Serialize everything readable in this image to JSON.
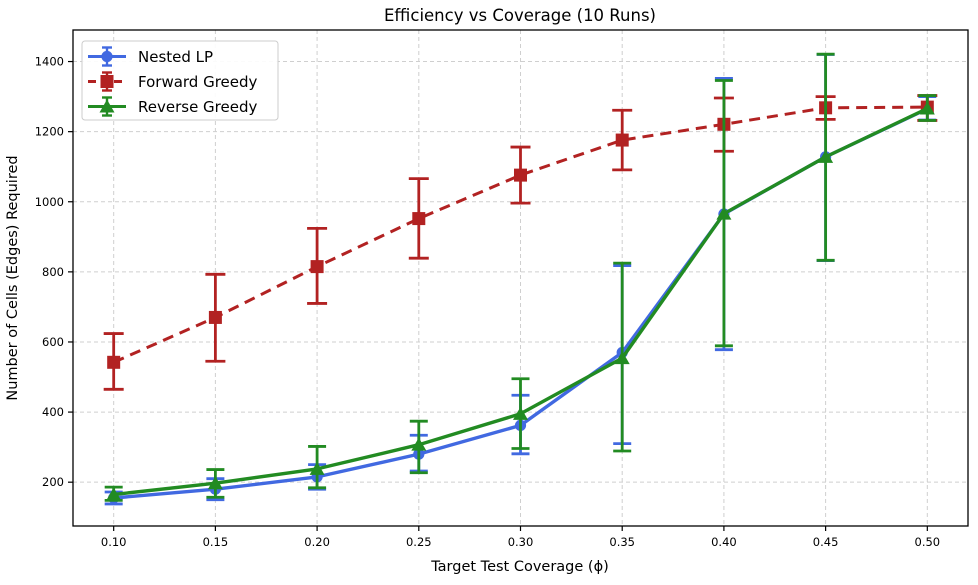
{
  "figure": {
    "title": "Efficiency vs Coverage (10 Runs)",
    "xlabel": "Target Test Coverage (ϕ)",
    "ylabel": "Number of Cells (Edges) Required"
  },
  "chart_data": {
    "type": "line",
    "title": "Efficiency vs Coverage (10 Runs)",
    "xlabel": "Target Test Coverage (ϕ)",
    "ylabel": "Number of Cells (Edges) Required",
    "grid": true,
    "grid_style": "dashed",
    "legend_position": "upper-left",
    "x": [
      0.1,
      0.15,
      0.2,
      0.25,
      0.3,
      0.35,
      0.4,
      0.45,
      0.5
    ],
    "x_tick_labels": [
      "0.10",
      "0.15",
      "0.20",
      "0.25",
      "0.30",
      "0.35",
      "0.40",
      "0.45",
      "0.50"
    ],
    "y_ticks": [
      200,
      400,
      600,
      800,
      1000,
      1200,
      1400
    ],
    "xlim": [
      0.08,
      0.52
    ],
    "ylim": [
      75,
      1490
    ],
    "series": [
      {
        "name": "Nested LP",
        "color": "#4169E1",
        "line_style": "solid",
        "marker": "circle",
        "values": [
          155,
          180,
          215,
          280,
          362,
          570,
          965,
          1128,
          1265
        ],
        "err_low": [
          138,
          150,
          180,
          232,
          281,
          310,
          578,
          832,
          1233
        ],
        "err_high": [
          172,
          210,
          250,
          334,
          448,
          818,
          1352,
          1420,
          1300
        ]
      },
      {
        "name": "Forward Greedy",
        "color": "#B22222",
        "line_style": "dashed",
        "marker": "square",
        "values": [
          542,
          670,
          815,
          952,
          1076,
          1176,
          1221,
          1268,
          1270
        ],
        "err_low": [
          465,
          545,
          710,
          839,
          996,
          1091,
          1144,
          1235,
          1232
        ],
        "err_high": [
          624,
          793,
          924,
          1066,
          1156,
          1261,
          1296,
          1300,
          1303
        ]
      },
      {
        "name": "Reverse Greedy",
        "color": "#228B22",
        "line_style": "solid",
        "marker": "triangle",
        "values": [
          165,
          197,
          238,
          307,
          395,
          554,
          966,
          1128,
          1266
        ],
        "err_low": [
          148,
          157,
          184,
          227,
          296,
          289,
          589,
          833,
          1232
        ],
        "err_high": [
          186,
          236,
          302,
          374,
          495,
          825,
          1346,
          1421,
          1303
        ]
      }
    ]
  }
}
